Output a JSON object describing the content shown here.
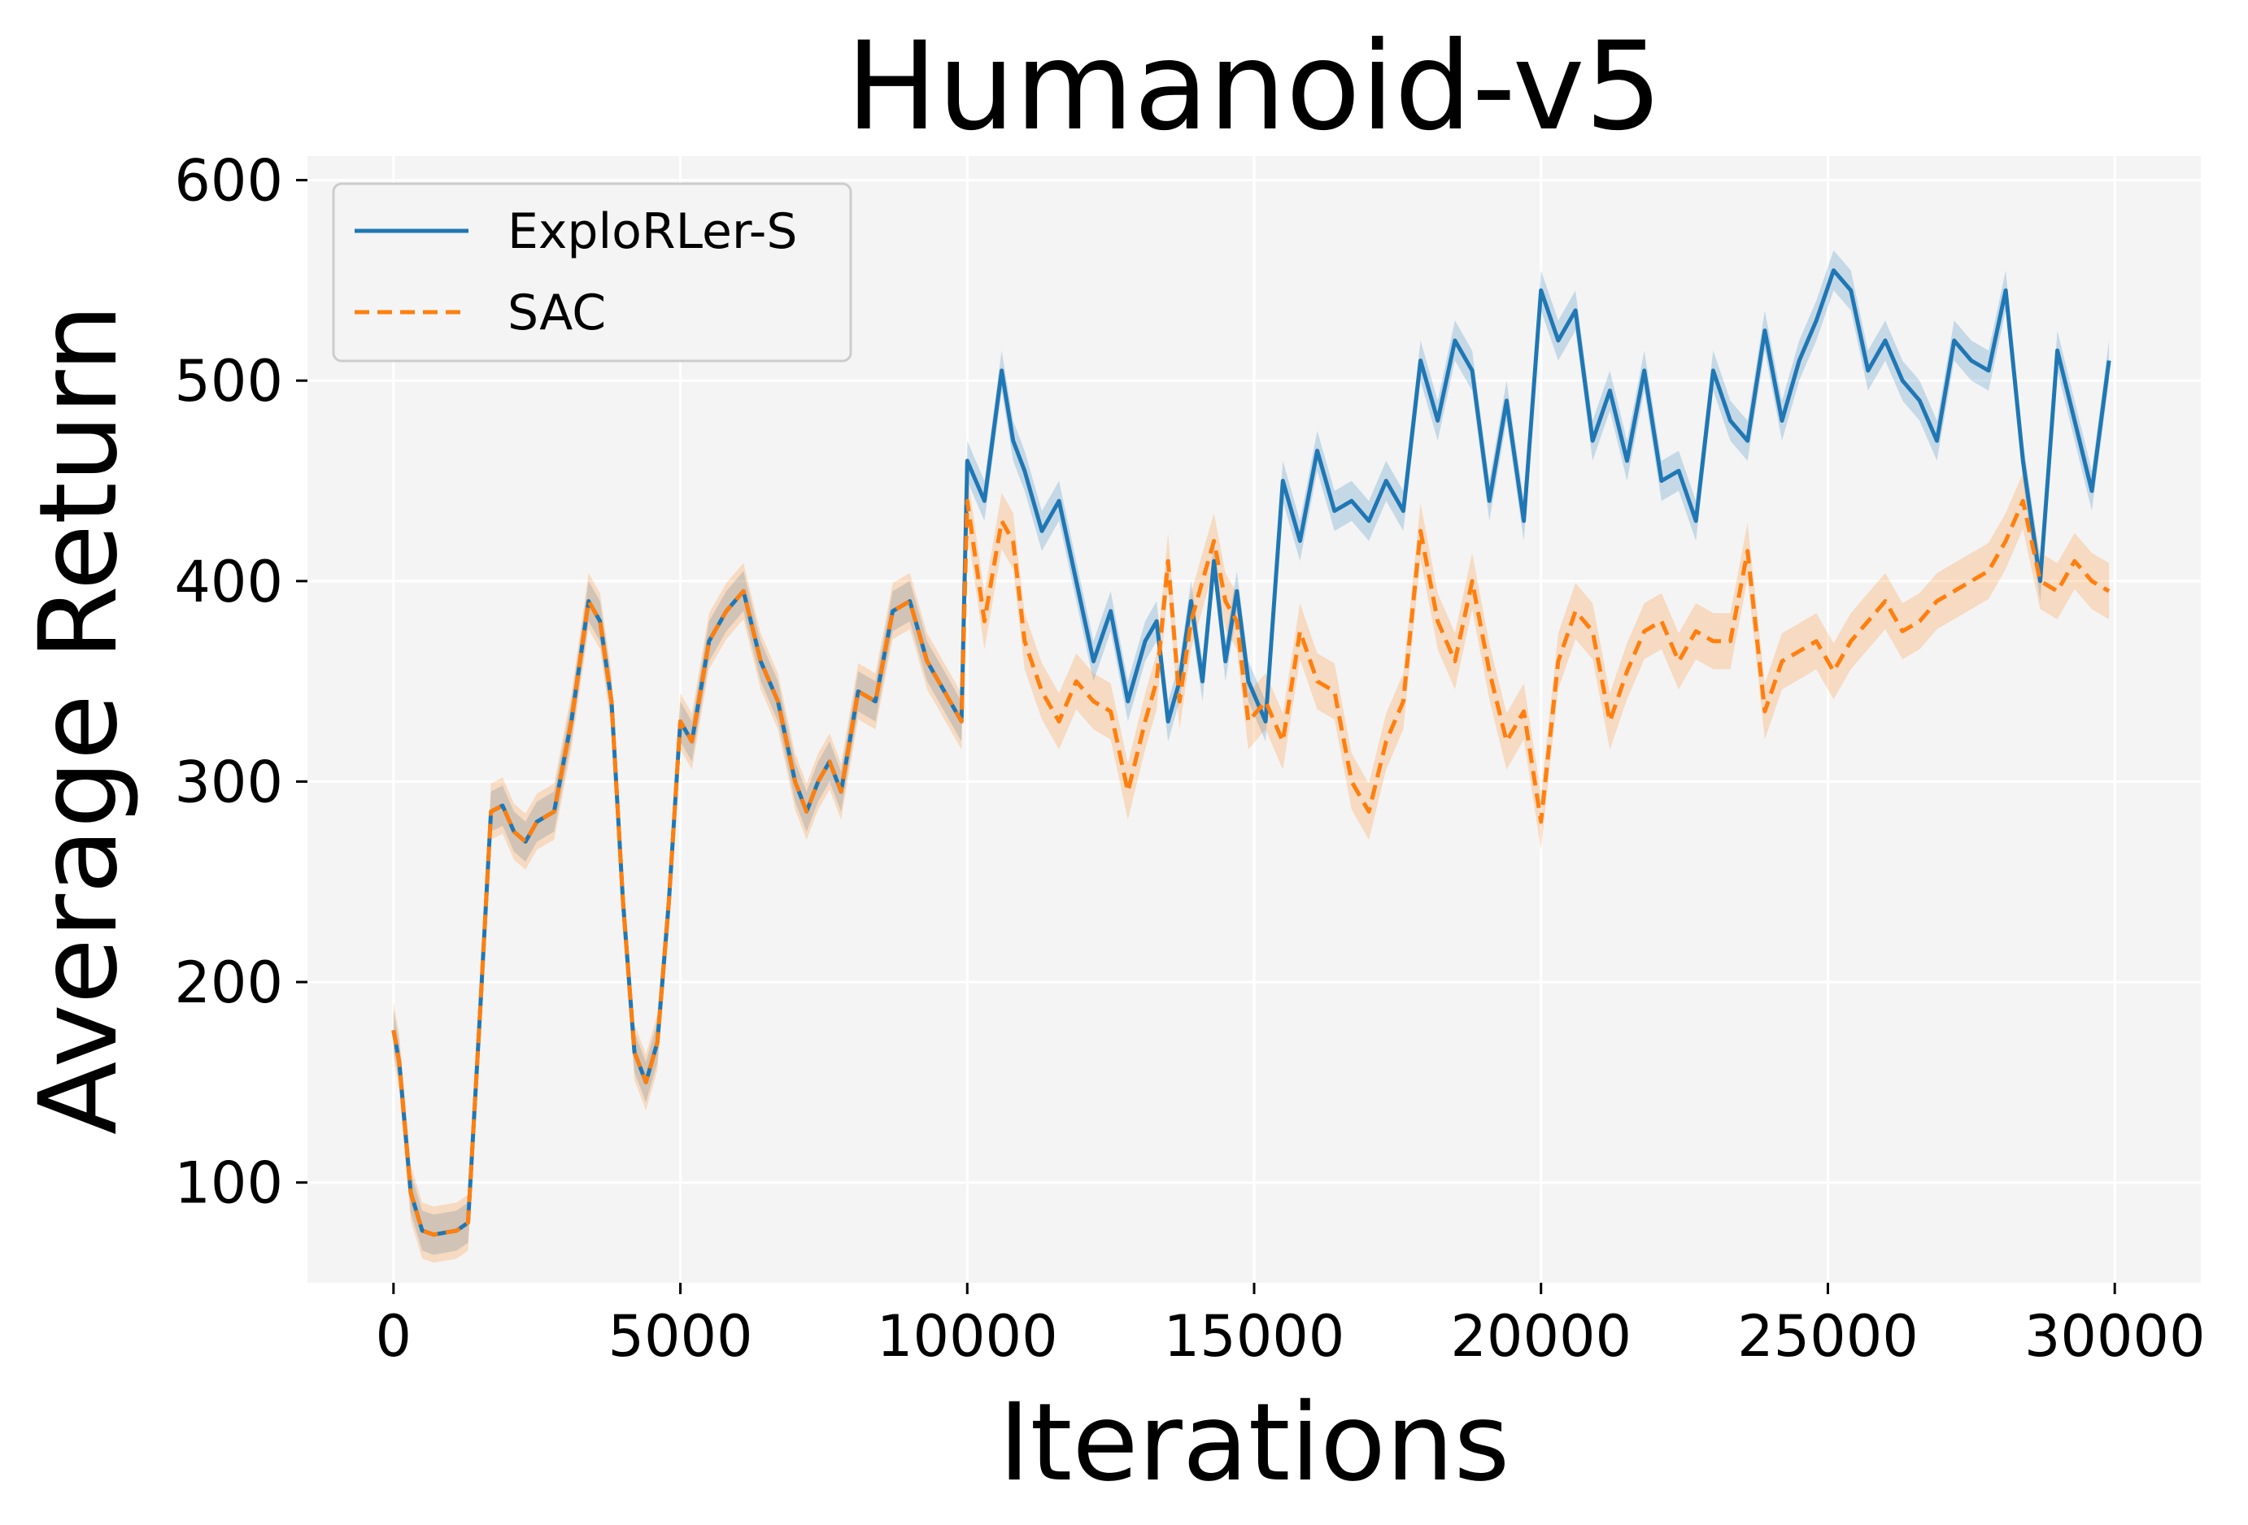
{
  "chart_data": {
    "type": "line",
    "title": "Humanoid-v5",
    "xlabel": "Iterations",
    "ylabel": "Average Return",
    "xlim": [
      -1500,
      31500
    ],
    "ylim": [
      50,
      612
    ],
    "xticks": [
      0,
      5000,
      10000,
      15000,
      20000,
      25000,
      30000
    ],
    "yticks": [
      100,
      200,
      300,
      400,
      500,
      600
    ],
    "grid": true,
    "legend_position": "top-left",
    "series": [
      {
        "name": "ExploRLer-S",
        "color": "#1f77b4",
        "style": "solid",
        "band": 10,
        "x": [
          0,
          100,
          300,
          500,
          700,
          900,
          1100,
          1300,
          1500,
          1700,
          1900,
          2100,
          2300,
          2500,
          2800,
          3100,
          3400,
          3600,
          3800,
          4000,
          4200,
          4400,
          4600,
          4800,
          5000,
          5200,
          5500,
          5800,
          6100,
          6400,
          6700,
          7000,
          7200,
          7400,
          7600,
          7800,
          8100,
          8400,
          8700,
          9000,
          9300,
          9600,
          9900,
          10000,
          10300,
          10600,
          10800,
          11000,
          11300,
          11600,
          11900,
          12200,
          12500,
          12800,
          13100,
          13300,
          13500,
          13700,
          13900,
          14100,
          14300,
          14500,
          14700,
          14900,
          15200,
          15500,
          15800,
          16100,
          16400,
          16700,
          17000,
          17300,
          17600,
          17900,
          18200,
          18500,
          18800,
          19100,
          19400,
          19700,
          20000,
          20300,
          20600,
          20900,
          21200,
          21500,
          21800,
          22100,
          22400,
          22700,
          23000,
          23300,
          23600,
          23900,
          24200,
          24500,
          24800,
          25100,
          25400,
          25700,
          26000,
          26300,
          26600,
          26900,
          27200,
          27500,
          27800,
          28100,
          28400,
          28700,
          29000,
          29300,
          29600,
          29900
        ],
        "y": [
          176,
          160,
          95,
          76,
          74,
          75,
          76,
          80,
          180,
          285,
          288,
          275,
          270,
          280,
          285,
          330,
          390,
          380,
          340,
          240,
          165,
          150,
          170,
          240,
          330,
          320,
          370,
          385,
          395,
          360,
          340,
          300,
          285,
          300,
          310,
          295,
          345,
          340,
          385,
          390,
          360,
          345,
          330,
          460,
          440,
          505,
          470,
          455,
          425,
          440,
          400,
          360,
          385,
          340,
          370,
          380,
          330,
          350,
          390,
          350,
          410,
          360,
          395,
          350,
          330,
          450,
          420,
          465,
          435,
          440,
          430,
          450,
          435,
          510,
          480,
          520,
          505,
          440,
          490,
          430,
          545,
          520,
          535,
          470,
          495,
          460,
          505,
          450,
          455,
          430,
          505,
          480,
          470,
          525,
          480,
          510,
          530,
          555,
          545,
          505,
          520,
          500,
          490,
          470,
          520,
          510,
          505,
          545,
          460,
          400,
          515,
          480,
          445,
          510
        ]
      },
      {
        "name": "SAC",
        "color": "#ff7f0e",
        "style": "dashed",
        "band": 14,
        "x": [
          0,
          100,
          300,
          500,
          700,
          900,
          1100,
          1300,
          1500,
          1700,
          1900,
          2100,
          2300,
          2500,
          2800,
          3100,
          3400,
          3600,
          3800,
          4000,
          4200,
          4400,
          4600,
          4800,
          5000,
          5200,
          5500,
          5800,
          6100,
          6400,
          6700,
          7000,
          7200,
          7400,
          7600,
          7800,
          8100,
          8400,
          8700,
          9000,
          9300,
          9600,
          9900,
          10000,
          10300,
          10600,
          10800,
          11000,
          11300,
          11600,
          11900,
          12200,
          12500,
          12800,
          13100,
          13300,
          13500,
          13700,
          13900,
          14100,
          14300,
          14500,
          14700,
          14900,
          15200,
          15500,
          15800,
          16100,
          16400,
          16700,
          17000,
          17300,
          17600,
          17900,
          18200,
          18500,
          18800,
          19100,
          19400,
          19700,
          20000,
          20300,
          20600,
          20900,
          21200,
          21500,
          21800,
          22100,
          22400,
          22700,
          23000,
          23300,
          23600,
          23900,
          24200,
          24500,
          24800,
          25100,
          25400,
          25700,
          26000,
          26300,
          26600,
          26900,
          27200,
          27500,
          27800,
          28100,
          28400,
          28700,
          29000,
          29300,
          29600,
          29900
        ],
        "y": [
          176,
          160,
          95,
          76,
          74,
          75,
          76,
          80,
          180,
          285,
          288,
          275,
          270,
          280,
          285,
          330,
          390,
          380,
          340,
          240,
          165,
          150,
          170,
          240,
          330,
          320,
          370,
          385,
          395,
          360,
          340,
          300,
          285,
          300,
          310,
          295,
          345,
          340,
          385,
          390,
          360,
          345,
          330,
          440,
          380,
          430,
          420,
          370,
          345,
          330,
          350,
          340,
          335,
          295,
          330,
          350,
          410,
          340,
          380,
          400,
          420,
          390,
          380,
          330,
          340,
          320,
          375,
          350,
          345,
          300,
          285,
          320,
          340,
          425,
          380,
          360,
          400,
          355,
          320,
          335,
          280,
          360,
          385,
          375,
          330,
          355,
          375,
          380,
          360,
          375,
          370,
          370,
          415,
          335,
          360,
          365,
          370,
          355,
          370,
          380,
          390,
          375,
          380,
          390,
          395,
          400,
          405,
          420,
          440,
          400,
          395,
          410,
          400,
          395
        ]
      }
    ]
  }
}
